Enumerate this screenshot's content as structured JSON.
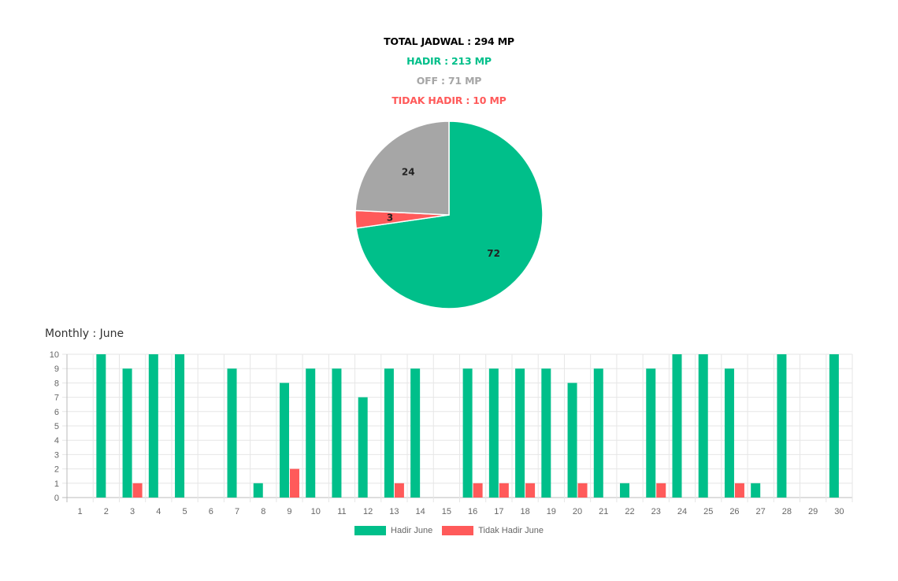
{
  "summary": {
    "total": "TOTAL JADWAL : 294 MP",
    "hadir": "HADIR : 213 MP",
    "off": "OFF : 71 MP",
    "tidak_hadir": "TIDAK HADIR : 10 MP"
  },
  "colors": {
    "hadir": "#00bf8a",
    "off": "#a6a6a6",
    "tidak_hadir": "#ff5a5a",
    "total": "#000000"
  },
  "monthly_title": "Monthly : June",
  "chart_data": [
    {
      "type": "pie",
      "slices": [
        {
          "label": "Hadir",
          "value": 72,
          "color": "#00bf8a"
        },
        {
          "label": "Tidak Hadir",
          "value": 3,
          "color": "#ff5a5a"
        },
        {
          "label": "Off",
          "value": 24,
          "color": "#a6a6a6"
        }
      ]
    },
    {
      "type": "bar",
      "categories": [
        "1",
        "2",
        "3",
        "4",
        "5",
        "6",
        "7",
        "8",
        "9",
        "10",
        "11",
        "12",
        "13",
        "14",
        "15",
        "16",
        "17",
        "18",
        "19",
        "20",
        "21",
        "22",
        "23",
        "24",
        "25",
        "26",
        "27",
        "28",
        "29",
        "30"
      ],
      "series": [
        {
          "name": "Hadir June",
          "color": "#00bf8a",
          "values": [
            0,
            10,
            9,
            10,
            10,
            0,
            9,
            1,
            8,
            9,
            9,
            7,
            9,
            9,
            0,
            9,
            9,
            9,
            9,
            8,
            9,
            1,
            9,
            10,
            10,
            9,
            1,
            10,
            0,
            10
          ]
        },
        {
          "name": "Tidak Hadir June",
          "color": "#ff5a5a",
          "values": [
            0,
            0,
            1,
            0,
            0,
            0,
            0,
            0,
            2,
            0,
            0,
            0,
            1,
            0,
            0,
            1,
            1,
            1,
            0,
            1,
            0,
            0,
            1,
            0,
            0,
            1,
            0,
            0,
            0,
            0
          ]
        }
      ],
      "ylim": [
        0,
        10
      ],
      "yticks": [
        0,
        1,
        2,
        3,
        4,
        5,
        6,
        7,
        8,
        9,
        10
      ],
      "grid": true,
      "legend": "bottom"
    }
  ]
}
